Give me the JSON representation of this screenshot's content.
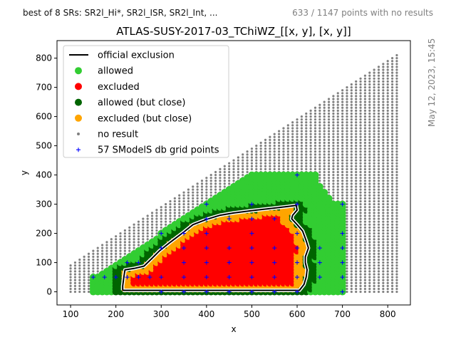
{
  "header": {
    "left_text": "best of 8 SRs: SR2l_Hi*, SR2l_ISR, SR2l_Int, ...",
    "right_text": "633 / 1147 points with no results",
    "side_text": "May 12, 2023, 15:45"
  },
  "colors": {
    "allowed": "#32cd32",
    "excluded": "#ff0000",
    "allowed_close": "#006400",
    "excluded_close": "#ffa500",
    "no_result": "#808080",
    "grid_points": "#0000ff",
    "exclusion_line": "#000000"
  },
  "chart_data": {
    "type": "scatter",
    "title": "ATLAS-SUSY-2017-03_TChiWZ_[[x, y], [x, y]]",
    "xlabel": "x",
    "ylabel": "y",
    "xlim": [
      70,
      850
    ],
    "ylim": [
      -45,
      860
    ],
    "xticks": [
      100,
      200,
      300,
      400,
      500,
      600,
      700,
      800
    ],
    "yticks": [
      0,
      100,
      200,
      300,
      400,
      500,
      600,
      700,
      800
    ],
    "grid": false,
    "legend_position": "upper-left",
    "legend": [
      {
        "key": "official",
        "label": "official exclusion",
        "marker": "line"
      },
      {
        "key": "allowed",
        "label": "allowed",
        "marker": "circle"
      },
      {
        "key": "excluded",
        "label": "excluded",
        "marker": "circle"
      },
      {
        "key": "allowed_close",
        "label": "allowed (but close)",
        "marker": "circle"
      },
      {
        "key": "excluded_close",
        "label": "excluded (but close)",
        "marker": "circle"
      },
      {
        "key": "no_result",
        "label": "no result",
        "marker": "dot"
      },
      {
        "key": "grid_points",
        "label": "57 SModelS db grid points",
        "marker": "plus"
      }
    ],
    "no_result_region": {
      "x_min": 100,
      "x_max": 820,
      "x_step": 10,
      "y_min": 0,
      "y_max_rule": "y <= x - 5",
      "y_step": 10
    },
    "result_region": {
      "x_min": 150,
      "x_max": 700,
      "x_step": 10,
      "y_step": 10
    },
    "official_exclusion": [
      [
        215,
        5
      ],
      [
        215,
        20
      ],
      [
        218,
        55
      ],
      [
        220,
        75
      ],
      [
        240,
        80
      ],
      [
        262,
        88
      ],
      [
        278,
        112
      ],
      [
        296,
        140
      ],
      [
        320,
        170
      ],
      [
        350,
        205
      ],
      [
        370,
        230
      ],
      [
        400,
        248
      ],
      [
        430,
        262
      ],
      [
        460,
        270
      ],
      [
        500,
        278
      ],
      [
        540,
        285
      ],
      [
        580,
        292
      ],
      [
        598,
        296
      ],
      [
        600,
        280
      ],
      [
        590,
        262
      ],
      [
        588,
        250
      ],
      [
        600,
        230
      ],
      [
        612,
        208
      ],
      [
        620,
        175
      ],
      [
        625,
        150
      ],
      [
        618,
        120
      ],
      [
        618,
        100
      ],
      [
        622,
        75
      ],
      [
        620,
        50
      ],
      [
        615,
        25
      ],
      [
        605,
        5
      ],
      [
        215,
        5
      ]
    ],
    "db_grid_points": [
      [
        150,
        50
      ],
      [
        175,
        50
      ],
      [
        200,
        50
      ],
      [
        225,
        50
      ],
      [
        250,
        50
      ],
      [
        275,
        50
      ],
      [
        300,
        50
      ],
      [
        225,
        100
      ],
      [
        250,
        100
      ],
      [
        300,
        150
      ],
      [
        350,
        200
      ],
      [
        400,
        250
      ],
      [
        450,
        250
      ],
      [
        500,
        250
      ],
      [
        550,
        250
      ],
      [
        350,
        150
      ],
      [
        400,
        150
      ],
      [
        450,
        150
      ],
      [
        500,
        150
      ],
      [
        550,
        150
      ],
      [
        600,
        150
      ],
      [
        650,
        150
      ],
      [
        700,
        150
      ],
      [
        350,
        100
      ],
      [
        400,
        100
      ],
      [
        450,
        100
      ],
      [
        500,
        100
      ],
      [
        550,
        100
      ],
      [
        600,
        100
      ],
      [
        650,
        100
      ],
      [
        700,
        100
      ],
      [
        300,
        0
      ],
      [
        350,
        0
      ],
      [
        400,
        0
      ],
      [
        450,
        0
      ],
      [
        500,
        0
      ],
      [
        550,
        0
      ],
      [
        600,
        0
      ],
      [
        700,
        0
      ],
      [
        350,
        50
      ],
      [
        400,
        50
      ],
      [
        450,
        50
      ],
      [
        500,
        50
      ],
      [
        550,
        50
      ],
      [
        600,
        50
      ],
      [
        650,
        50
      ],
      [
        700,
        50
      ],
      [
        300,
        200
      ],
      [
        400,
        200
      ],
      [
        500,
        200
      ],
      [
        600,
        200
      ],
      [
        700,
        200
      ],
      [
        400,
        300
      ],
      [
        500,
        300
      ],
      [
        600,
        300
      ],
      [
        700,
        300
      ],
      [
        600,
        400
      ]
    ]
  }
}
